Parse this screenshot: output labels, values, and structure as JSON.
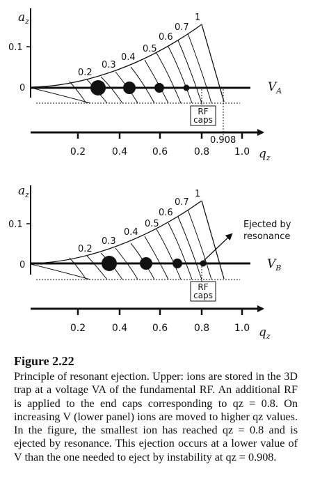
{
  "figure": {
    "upper": {
      "y_axis_label": "a",
      "y_axis_sub": "z",
      "y_ticks": [
        "0.1",
        "0"
      ],
      "iso_labels": [
        "0.2",
        "0.3",
        "0.4",
        "0.5",
        "0.6",
        "0.7",
        "1"
      ],
      "voltage_main": "V",
      "voltage_sub": "A",
      "box_line1": "RF",
      "box_line2": "caps",
      "cutoff_label": "0.908",
      "x_ticks": [
        "0.2",
        "0.4",
        "0.6",
        "0.8",
        "1.0"
      ],
      "x_axis_label": "q",
      "x_axis_sub": "z"
    },
    "lower": {
      "y_axis_label": "a",
      "y_axis_sub": "z",
      "y_ticks": [
        "0.1",
        "0"
      ],
      "iso_labels": [
        "0.2",
        "0.3",
        "0.4",
        "0.5",
        "0.6",
        "0.7",
        "1"
      ],
      "voltage_main": "V",
      "voltage_sub": "B",
      "box_line1": "RF",
      "box_line2": "caps",
      "ejected_line1": "Ejected by",
      "ejected_line2": "resonance",
      "x_ticks": [
        "0.2",
        "0.4",
        "0.6",
        "0.8",
        "1.0"
      ],
      "x_axis_label": "q",
      "x_axis_sub": "z"
    }
  },
  "caption": {
    "title": "Figure 2.22",
    "body": "Principle of resonant ejection. Upper: ions are stored in the 3D trap at a voltage VA of the fundamental RF. An additional RF is applied to the end caps corresponding to qz = 0.8. On increasing V (lower panel) ions are moved to higher qz values. In the figure, the smallest ion has reached qz = 0.8 and is ejected by resonance. This ejection occurs at a lower value of V than the one needed to eject by instability at qz = 0.908."
  }
}
